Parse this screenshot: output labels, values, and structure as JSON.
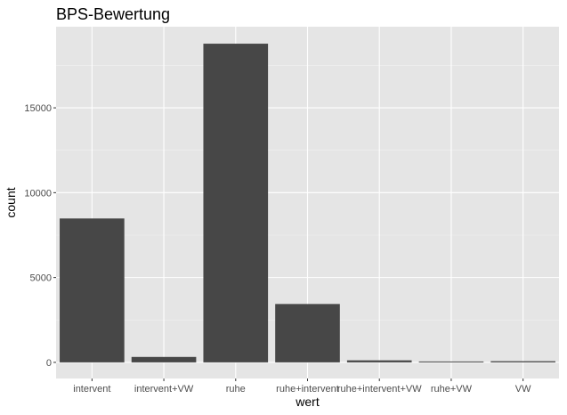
{
  "chart_data": {
    "type": "bar",
    "title": "BPS-Bewertung",
    "xlabel": "wert",
    "ylabel": "count",
    "categories": [
      "intervent",
      "intervent+VW",
      "ruhe",
      "ruhe+intervent",
      "ruhe+intervent+VW",
      "ruhe+VW",
      "VW"
    ],
    "values": [
      8480,
      320,
      18780,
      3440,
      120,
      40,
      70
    ],
    "ylim": [
      -950,
      19780
    ],
    "yticks": [
      0,
      5000,
      10000,
      15000
    ],
    "ytick_labels": [
      "0",
      "5000",
      "10000",
      "15000"
    ],
    "grid": true,
    "legend": "none",
    "colors": {
      "bar": "#474747",
      "panel": "#e5e5e5",
      "grid_major": "#ffffff",
      "grid_minor": "#f2f2f2",
      "tick_text": "#4d4d4d"
    }
  }
}
